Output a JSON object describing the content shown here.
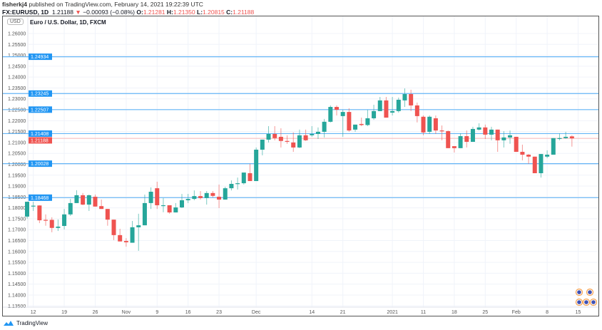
{
  "header": {
    "author": "fisherkj4",
    "published": "published on TradingView.com, February 14, 2021 19:22:39 UTC",
    "symbol": "FX:EURUSD, 1D",
    "last": "1.21188",
    "change": "−0.00093 (−0.08%)",
    "o_label": "O:",
    "o": "1.21281",
    "h_label": "H:",
    "h": "1.21350",
    "l_label": "L:",
    "l": "1.20815",
    "c_label": "C:",
    "c": "1.21188"
  },
  "chart": {
    "title": "Euro / U.S. Dollar, 1D, FXCM",
    "currency": "USD",
    "price_ticks": [
      "1.26000",
      "1.25500",
      "1.25000",
      "1.24500",
      "1.24000",
      "1.23500",
      "1.23000",
      "1.22500",
      "1.22000",
      "1.21500",
      "1.21000",
      "1.20500",
      "1.20000",
      "1.19500",
      "1.19000",
      "1.18500",
      "1.18000",
      "1.17500",
      "1.17000",
      "1.16500",
      "1.16000",
      "1.15500",
      "1.15000",
      "1.14500",
      "1.14000",
      "1.13500"
    ],
    "levels": [
      "1.24934",
      "1.23245",
      "1.22507",
      "1.21408",
      "1.20028",
      "1.18468"
    ],
    "current_price": "1.21188",
    "time_labels": [
      {
        "t": "12",
        "i": 1
      },
      {
        "t": "19",
        "i": 6
      },
      {
        "t": "26",
        "i": 11
      },
      {
        "t": "Nov",
        "i": 16
      },
      {
        "t": "9",
        "i": 21
      },
      {
        "t": "16",
        "i": 26
      },
      {
        "t": "23",
        "i": 31
      },
      {
        "t": "Dec",
        "i": 37
      },
      {
        "t": "14",
        "i": 46
      },
      {
        "t": "21",
        "i": 51
      },
      {
        "t": "2021",
        "i": 59
      },
      {
        "t": "11",
        "i": 64
      },
      {
        "t": "18",
        "i": 69
      },
      {
        "t": "25",
        "i": 74
      },
      {
        "t": "Feb",
        "i": 79
      },
      {
        "t": "8",
        "i": 84
      },
      {
        "t": "15",
        "i": 89
      }
    ],
    "colors": {
      "up": "#26a69a",
      "down": "#ef5350",
      "level": "#2196f3",
      "grid": "#f0f3fa"
    }
  },
  "chart_data": {
    "type": "candlestick",
    "title": "Euro / U.S. Dollar, 1D, FXCM",
    "ylim": [
      1.135,
      1.265
    ],
    "ohlc": [
      [
        1.176,
        1.1828,
        1.175,
        1.1828
      ],
      [
        1.1808,
        1.1828,
        1.1786,
        1.181
      ],
      [
        1.1811,
        1.1812,
        1.173,
        1.1743
      ],
      [
        1.1745,
        1.177,
        1.1718,
        1.1743
      ],
      [
        1.1745,
        1.1757,
        1.1688,
        1.1708
      ],
      [
        1.1708,
        1.1747,
        1.1694,
        1.1714
      ],
      [
        1.1717,
        1.1795,
        1.1701,
        1.177
      ],
      [
        1.177,
        1.1841,
        1.1763,
        1.1822
      ],
      [
        1.1822,
        1.1881,
        1.1822,
        1.1858
      ],
      [
        1.1858,
        1.1868,
        1.1812,
        1.1815
      ],
      [
        1.1815,
        1.1861,
        1.1786,
        1.1858
      ],
      [
        1.1851,
        1.1861,
        1.1806,
        1.1806
      ],
      [
        1.1808,
        1.1838,
        1.1795,
        1.1795
      ],
      [
        1.1795,
        1.1795,
        1.1718,
        1.1746
      ],
      [
        1.1746,
        1.1746,
        1.1652,
        1.1675
      ],
      [
        1.1675,
        1.1704,
        1.1646,
        1.1646
      ],
      [
        1.1648,
        1.1661,
        1.1622,
        1.1642
      ],
      [
        1.164,
        1.174,
        1.164,
        1.1711
      ],
      [
        1.1711,
        1.1773,
        1.1603,
        1.172
      ],
      [
        1.172,
        1.1861,
        1.172,
        1.1822
      ],
      [
        1.1822,
        1.1894,
        1.1795,
        1.1874
      ],
      [
        1.189,
        1.192,
        1.1795,
        1.1812
      ],
      [
        1.181,
        1.1845,
        1.178,
        1.1812
      ],
      [
        1.1812,
        1.1812,
        1.1773,
        1.1779
      ],
      [
        1.1779,
        1.1822,
        1.1779,
        1.1802
      ],
      [
        1.1802,
        1.1864,
        1.1799,
        1.1835
      ],
      [
        1.1835,
        1.1864,
        1.1822,
        1.1841
      ],
      [
        1.1841,
        1.188,
        1.1835,
        1.1854
      ],
      [
        1.1854,
        1.1877,
        1.1838,
        1.1845
      ],
      [
        1.1845,
        1.1877,
        1.1815,
        1.1868
      ],
      [
        1.1868,
        1.1877,
        1.1848,
        1.1855
      ],
      [
        1.1851,
        1.1907,
        1.1799,
        1.1838
      ],
      [
        1.1838,
        1.1897,
        1.1838,
        1.189
      ],
      [
        1.189,
        1.1926,
        1.188,
        1.191
      ],
      [
        1.191,
        1.1939,
        1.1884,
        1.1913
      ],
      [
        1.1913,
        1.1962,
        1.1907,
        1.1962
      ],
      [
        1.1959,
        1.2002,
        1.1923,
        1.1923
      ],
      [
        1.1923,
        1.2077,
        1.1923,
        1.2067
      ],
      [
        1.2067,
        1.2113,
        1.2041,
        1.2113
      ],
      [
        1.2113,
        1.2175,
        1.21,
        1.2139
      ],
      [
        1.2139,
        1.2175,
        1.211,
        1.212
      ],
      [
        1.2126,
        1.2165,
        1.2077,
        1.2107
      ],
      [
        1.2107,
        1.2133,
        1.2094,
        1.2104
      ],
      [
        1.21,
        1.2146,
        1.2057,
        1.2077
      ],
      [
        1.2077,
        1.2159,
        1.2074,
        1.2133
      ],
      [
        1.2133,
        1.2159,
        1.2107,
        1.211
      ],
      [
        1.2133,
        1.2175,
        1.2126,
        1.2139
      ],
      [
        1.2139,
        1.2169,
        1.2116,
        1.2149
      ],
      [
        1.2149,
        1.2208,
        1.2123,
        1.2195
      ],
      [
        1.2195,
        1.227,
        1.2192,
        1.2263
      ],
      [
        1.2263,
        1.227,
        1.2224,
        1.225
      ],
      [
        1.2221,
        1.225,
        1.2126,
        1.224
      ],
      [
        1.224,
        1.2257,
        1.2149,
        1.2155
      ],
      [
        1.2159,
        1.2182,
        1.2149,
        1.2182
      ],
      [
        1.2185,
        1.2214,
        1.2175,
        1.218
      ],
      [
        1.218,
        1.225,
        1.2175,
        1.2211
      ],
      [
        1.2211,
        1.2273,
        1.2204,
        1.2244
      ],
      [
        1.2244,
        1.2309,
        1.2244,
        1.2293
      ],
      [
        1.2293,
        1.2309,
        1.2214,
        1.2214
      ],
      [
        1.2237,
        1.2309,
        1.2224,
        1.2244
      ],
      [
        1.2244,
        1.2306,
        1.2237,
        1.2296
      ],
      [
        1.2293,
        1.2348,
        1.2263,
        1.2322
      ],
      [
        1.2322,
        1.2342,
        1.2244,
        1.227
      ],
      [
        1.227,
        1.2283,
        1.2192,
        1.2221
      ],
      [
        1.2218,
        1.2224,
        1.2133,
        1.2146
      ],
      [
        1.2149,
        1.2224,
        1.2139,
        1.2218
      ],
      [
        1.2211,
        1.2224,
        1.2139,
        1.2155
      ],
      [
        1.2155,
        1.2178,
        1.211,
        1.2152
      ],
      [
        1.2152,
        1.2155,
        1.2074,
        1.2074
      ],
      [
        1.2083,
        1.2083,
        1.2054,
        1.2074
      ],
      [
        1.2074,
        1.2142,
        1.2074,
        1.2129
      ],
      [
        1.2129,
        1.2155,
        1.2077,
        1.2103
      ],
      [
        1.2103,
        1.2172,
        1.2103,
        1.2162
      ],
      [
        1.2159,
        1.2188,
        1.2155,
        1.2169
      ],
      [
        1.2169,
        1.2182,
        1.2116,
        1.2136
      ],
      [
        1.2136,
        1.2172,
        1.211,
        1.2159
      ],
      [
        1.2159,
        1.2159,
        1.2057,
        1.211
      ],
      [
        1.211,
        1.2152,
        1.2077,
        1.2123
      ],
      [
        1.2123,
        1.2155,
        1.2094,
        1.2133
      ],
      [
        1.2126,
        1.2126,
        1.2057,
        1.2057
      ],
      [
        1.2057,
        1.209,
        1.2018,
        1.2044
      ],
      [
        1.2044,
        1.2047,
        1.2002,
        1.2035
      ],
      [
        1.2035,
        1.2035,
        1.1959,
        1.1959
      ],
      [
        1.1959,
        1.2047,
        1.1939,
        1.2047
      ],
      [
        1.2035,
        1.2064,
        1.2028,
        1.2044
      ],
      [
        1.2044,
        1.212,
        1.2044,
        1.212
      ],
      [
        1.2117,
        1.2142,
        1.211,
        1.212
      ],
      [
        1.212,
        1.2149,
        1.2117,
        1.2126
      ],
      [
        1.2128,
        1.2133,
        1.2081,
        1.2119
      ]
    ]
  },
  "footer": {
    "brand": "TradingView"
  }
}
